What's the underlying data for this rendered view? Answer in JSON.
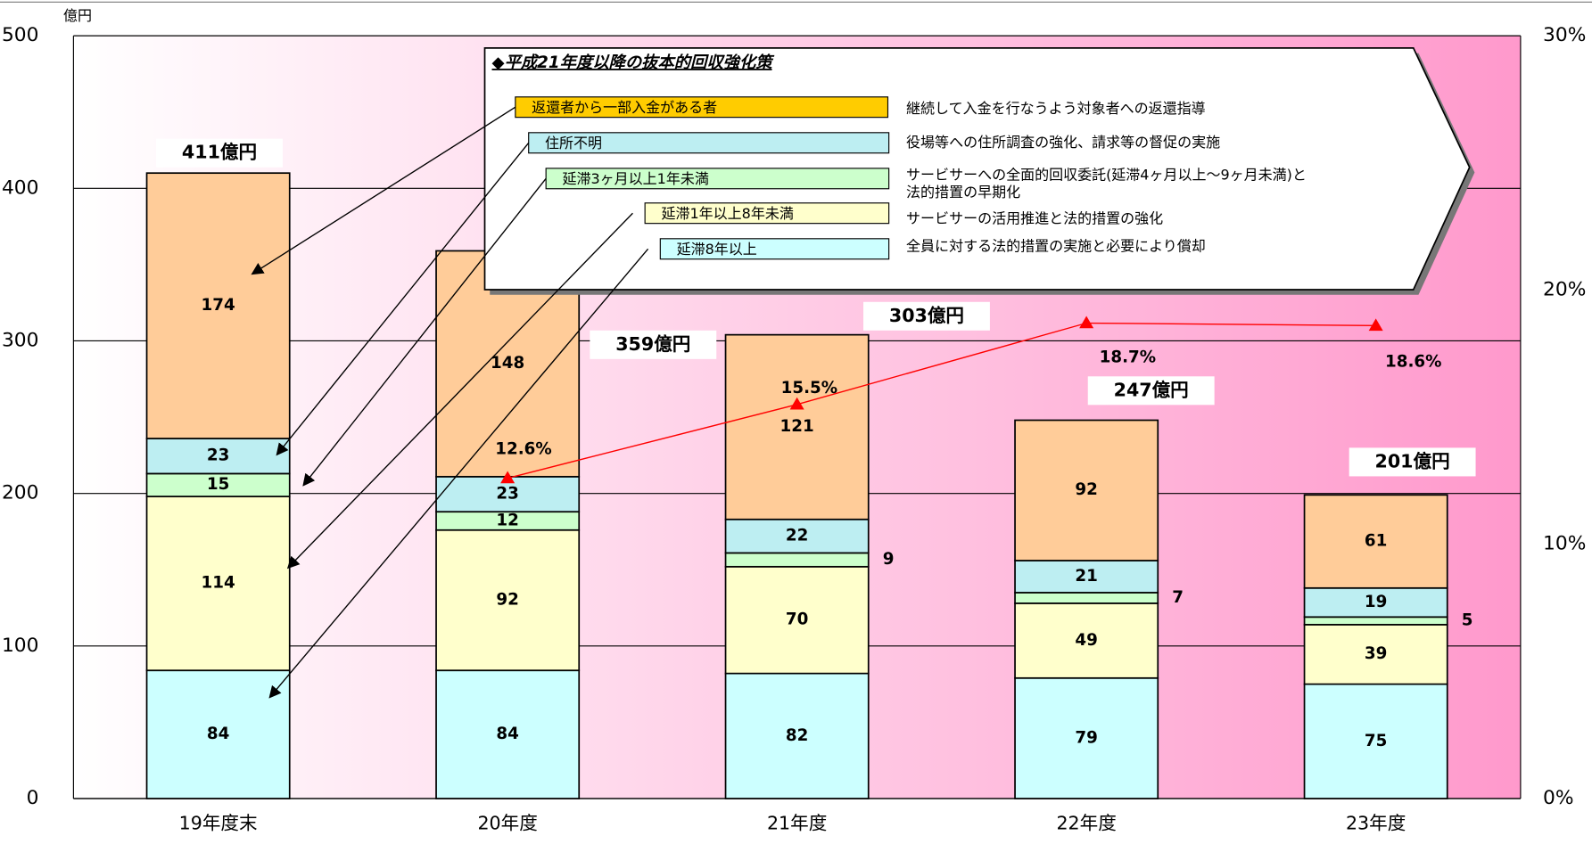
{
  "chart_data": {
    "type": "bar",
    "stacked": true,
    "y_unit": "億円",
    "categories": [
      "19年度末",
      "20年度",
      "21年度",
      "22年度",
      "23年度"
    ],
    "ylim": [
      0,
      500
    ],
    "yticks": [
      0,
      100,
      200,
      300,
      400,
      500
    ],
    "y2lim": [
      0,
      30
    ],
    "y2ticks": [
      {
        "value": 0,
        "label": "0%"
      },
      {
        "value": 10,
        "label": "10%"
      },
      {
        "value": 20,
        "label": "20%"
      },
      {
        "value": 30,
        "label": "30%"
      }
    ],
    "grid": true,
    "series": [
      {
        "name": "延滞8年以上",
        "color": "#ccffff",
        "values": [
          84,
          84,
          82,
          79,
          75
        ],
        "measure": [
          "全員に対する法的措置の実施と必要により償却"
        ]
      },
      {
        "name": "延滞1年以上8年未満",
        "color": "#ffffcc",
        "values": [
          114,
          92,
          70,
          49,
          39
        ],
        "measure": [
          "サービサーの活用推進と法的措置の強化"
        ]
      },
      {
        "name": "延滞3ヶ月以上1年未満",
        "color": "#ccffcc",
        "values": [
          15,
          12,
          9,
          7,
          5
        ],
        "measure": [
          "サービサーへの全面的回収委託(延滞4ヶ月以上～9ヶ月未満)と",
          "法的措置の早期化"
        ]
      },
      {
        "name": "住所不明",
        "color": "#bdeef2",
        "values": [
          23,
          23,
          22,
          21,
          19
        ],
        "measure": [
          "役場等への住所調査の強化、請求等の督促の実施"
        ]
      },
      {
        "name": "返還者から一部入金がある者",
        "color": "#ffcc99",
        "values": [
          174,
          148,
          121,
          92,
          61
        ],
        "measure": [
          "継続して入金を行なうよう対象者への返還指導"
        ]
      },
      {
        "type": "line",
        "axis": "y2",
        "color": "#ff0000",
        "values": [
          null,
          12.6,
          15.5,
          18.7,
          18.6
        ],
        "value_labels": [
          null,
          "12.6%",
          "15.5%",
          "18.7%",
          "18.6%"
        ]
      }
    ],
    "total_labels": [
      "411億円",
      "359億円",
      "303億円",
      "247億円",
      "201億円"
    ],
    "legend_title": "◆平成21年度以降の抜本的回収強化策"
  }
}
